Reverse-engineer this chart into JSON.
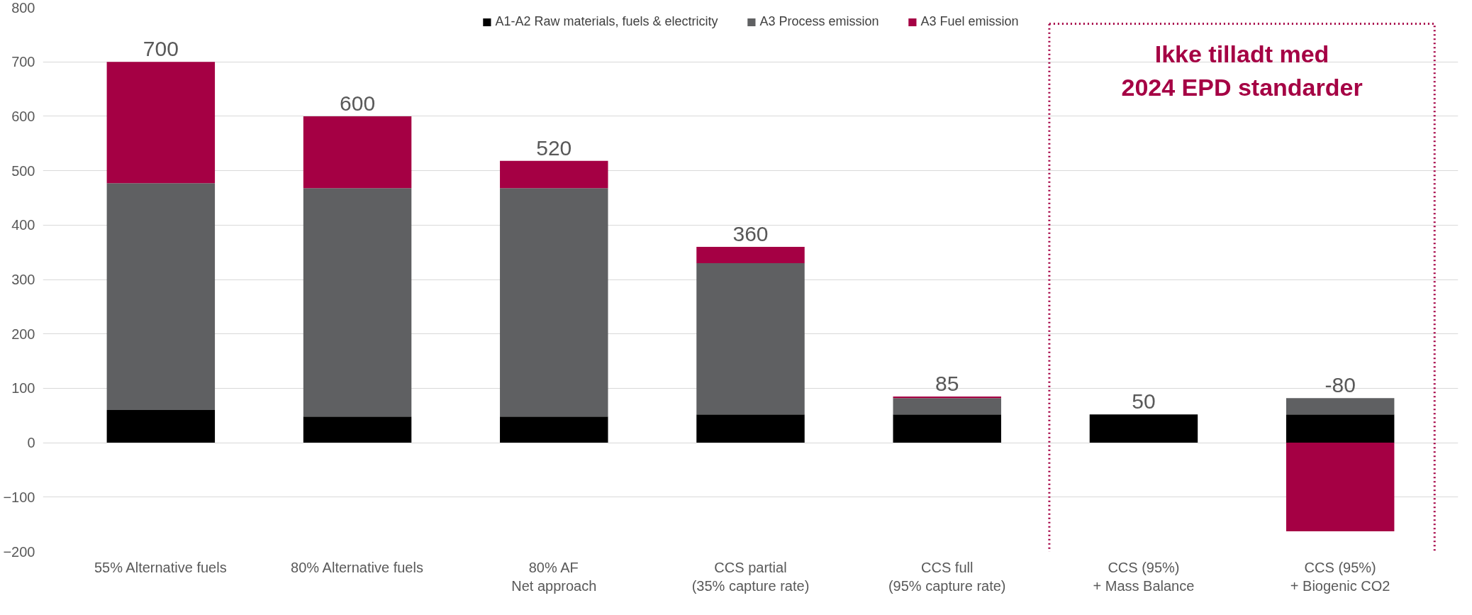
{
  "chart_data": {
    "type": "bar",
    "stacked": true,
    "categories": [
      "55% Alternative fuels",
      "80% Alternative fuels",
      "80% AF\nNet approach",
      "CCS partial\n(35% capture rate)",
      "CCS full\n(95% capture rate)",
      "CCS (95%)\n+ Mass Balance",
      "CCS (95%)\n+ Biogenic CO2"
    ],
    "series": [
      {
        "name": "A1-A2 Raw materials, fuels & electricity",
        "color": "#000000",
        "values": [
          60,
          48,
          48,
          52,
          52,
          52,
          52
        ]
      },
      {
        "name": "A3 Process emission",
        "color": "#5f6062",
        "values": [
          417,
          420,
          420,
          278,
          30,
          null,
          30
        ]
      },
      {
        "name": "A3 Fuel emission",
        "color": "#a50044",
        "values": [
          223,
          132,
          50,
          30,
          3,
          null,
          -163
        ]
      }
    ],
    "totals": [
      "700",
      "600",
      "520",
      "360",
      "85",
      "50",
      "-80"
    ],
    "annotations": [
      "Ikke tilladt med\n2024 EPD standarder"
    ],
    "ylim": [
      -200,
      800
    ],
    "yticks": [
      -200,
      -100,
      0,
      100,
      200,
      300,
      400,
      500,
      600,
      700,
      800
    ],
    "grid": "y",
    "legend": "top"
  }
}
